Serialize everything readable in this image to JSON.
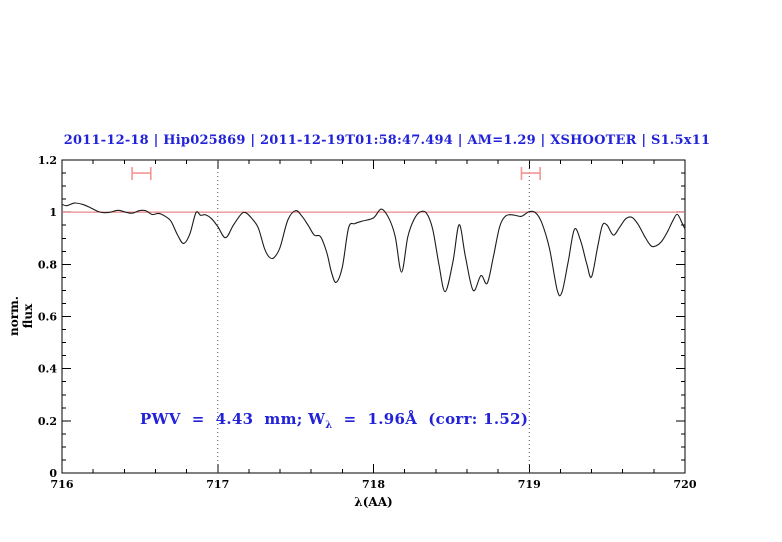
{
  "figure": {
    "title": "2011-12-18 | Hip025869 | 2011-12-19T01:58:47.494 | AM=1.29 | XSHOOTER | S1.5x11",
    "title_color": "#2222d8",
    "annotation": {
      "prefix": "PWV  =  4.43  mm; W",
      "subscript": "λ",
      "suffix": "  =  1.96Å  (corr: 1.52)",
      "color": "#2222d8"
    }
  },
  "chart_data": {
    "type": "line",
    "title": "2011-12-18 | Hip025869 | 2011-12-19T01:58:47.494 | AM=1.29 | XSHOOTER | S1.5x11",
    "xlabel": "λ(AA)",
    "ylabel": "norm. flux",
    "xlim": [
      716,
      720
    ],
    "ylim": [
      0,
      1.2
    ],
    "x_ticks": [
      716,
      717,
      718,
      719,
      720
    ],
    "x_tick_labels": [
      "716",
      "717",
      "718",
      "719",
      "720"
    ],
    "x_minor_step": 0.2,
    "y_ticks": [
      0,
      0.2,
      0.4,
      0.6,
      0.8,
      1,
      1.2
    ],
    "y_tick_labels": [
      "0",
      "0.2",
      "0.4",
      "0.6",
      "0.8",
      "1",
      "1.2"
    ],
    "y_minor_step": 0.05,
    "grid": false,
    "axis_color": "#000000",
    "reference_line": {
      "y": 1.0,
      "color": "#e86a6a"
    },
    "dotted_vlines": {
      "x": [
        717,
        719
      ],
      "color": "#555555"
    },
    "range_markers": {
      "y": 1.15,
      "color": "#f39595",
      "intervals": [
        [
          716.45,
          716.57
        ],
        [
          718.95,
          719.07
        ]
      ]
    },
    "series": [
      {
        "name": "spectrum",
        "color": "#1c1c1c",
        "x": [
          716.0,
          716.03,
          716.08,
          716.13,
          716.18,
          716.23,
          716.27,
          716.31,
          716.36,
          716.41,
          716.45,
          716.5,
          716.54,
          716.58,
          716.62,
          716.66,
          716.7,
          716.74,
          716.78,
          716.82,
          716.86,
          716.89,
          716.92,
          716.96,
          717.0,
          717.05,
          717.1,
          717.15,
          717.18,
          717.22,
          717.26,
          717.3,
          717.33,
          717.36,
          717.4,
          717.45,
          717.5,
          717.54,
          717.58,
          717.62,
          717.66,
          717.7,
          717.73,
          717.76,
          717.8,
          717.84,
          717.88,
          717.93,
          718.0,
          718.05,
          718.1,
          718.14,
          718.18,
          718.22,
          718.26,
          718.3,
          718.34,
          718.38,
          718.42,
          718.46,
          718.51,
          718.55,
          718.59,
          718.64,
          718.69,
          718.73,
          718.77,
          718.81,
          718.85,
          718.9,
          718.95,
          719.0,
          719.04,
          719.08,
          719.13,
          719.18,
          719.21,
          719.25,
          719.29,
          719.33,
          719.37,
          719.4,
          719.44,
          719.47,
          719.5,
          719.54,
          719.58,
          719.62,
          719.66,
          719.7,
          719.74,
          719.78,
          719.81,
          719.85,
          719.89,
          719.92,
          719.95,
          719.98,
          720.0
        ],
        "y": [
          1.03,
          1.025,
          1.035,
          1.03,
          1.018,
          1.003,
          0.998,
          1.0,
          1.007,
          1.0,
          0.996,
          1.006,
          1.005,
          0.991,
          0.995,
          0.985,
          0.965,
          0.915,
          0.88,
          0.915,
          0.998,
          0.988,
          0.99,
          0.975,
          0.945,
          0.902,
          0.95,
          0.992,
          0.998,
          0.975,
          0.94,
          0.861,
          0.828,
          0.825,
          0.865,
          0.97,
          1.006,
          0.985,
          0.95,
          0.912,
          0.906,
          0.845,
          0.77,
          0.731,
          0.79,
          0.94,
          0.956,
          0.966,
          0.978,
          1.012,
          0.975,
          0.905,
          0.77,
          0.905,
          0.972,
          1.001,
          0.996,
          0.935,
          0.8,
          0.695,
          0.81,
          0.952,
          0.83,
          0.7,
          0.757,
          0.727,
          0.83,
          0.944,
          0.986,
          0.989,
          0.984,
          1.002,
          0.998,
          0.96,
          0.86,
          0.7,
          0.693,
          0.81,
          0.934,
          0.89,
          0.8,
          0.752,
          0.87,
          0.95,
          0.95,
          0.912,
          0.942,
          0.975,
          0.98,
          0.952,
          0.908,
          0.872,
          0.87,
          0.888,
          0.928,
          0.965,
          0.992,
          0.96,
          0.935
        ]
      }
    ]
  }
}
